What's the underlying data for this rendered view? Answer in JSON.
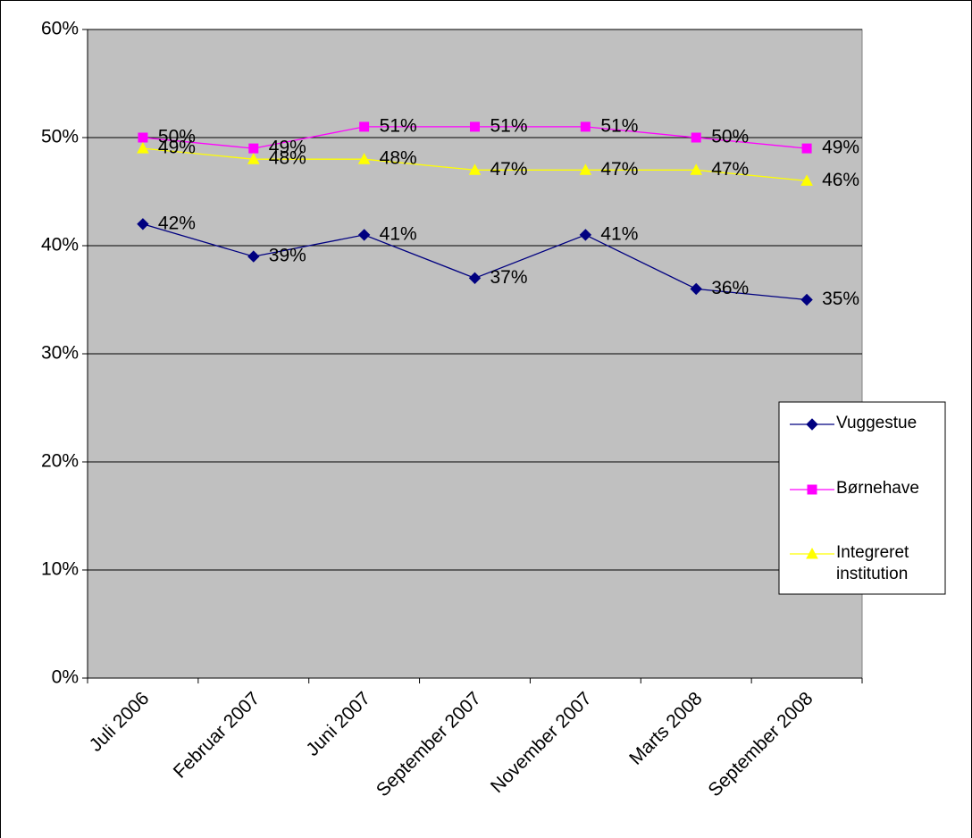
{
  "chart_data": {
    "type": "line",
    "categories": [
      "Juli 2006",
      "Februar 2007",
      "Juni 2007",
      "September 2007",
      "November 2007",
      "Marts 2008",
      "September 2008"
    ],
    "series": [
      {
        "name": "Vuggestue",
        "color": "#000080",
        "marker": "diamond",
        "values": [
          42,
          39,
          41,
          37,
          41,
          36,
          35
        ],
        "value_labels": [
          "42%",
          "39%",
          "41%",
          "37%",
          "41%",
          "36%",
          "35%"
        ]
      },
      {
        "name": "Børnehave",
        "color": "#ff00ff",
        "marker": "square",
        "values": [
          50,
          49,
          51,
          51,
          51,
          50,
          49
        ],
        "value_labels": [
          "50%",
          "49%",
          "51%",
          "51%",
          "51%",
          "50%",
          "49%"
        ]
      },
      {
        "name": "Integreret institution",
        "color": "#ffff00",
        "marker": "triangle",
        "values": [
          49,
          48,
          48,
          47,
          47,
          47,
          46
        ],
        "value_labels": [
          "49%",
          "48%",
          "48%",
          "47%",
          "47%",
          "47%",
          "46%"
        ]
      }
    ],
    "ylim": [
      0,
      60
    ],
    "yticks": [
      {
        "value": 0,
        "label": "0%"
      },
      {
        "value": 10,
        "label": "10%"
      },
      {
        "value": 20,
        "label": "20%"
      },
      {
        "value": 30,
        "label": "30%"
      },
      {
        "value": 40,
        "label": "40%"
      },
      {
        "value": 50,
        "label": "50%"
      },
      {
        "value": 60,
        "label": "60%"
      }
    ],
    "grid": true,
    "legend": "right"
  }
}
